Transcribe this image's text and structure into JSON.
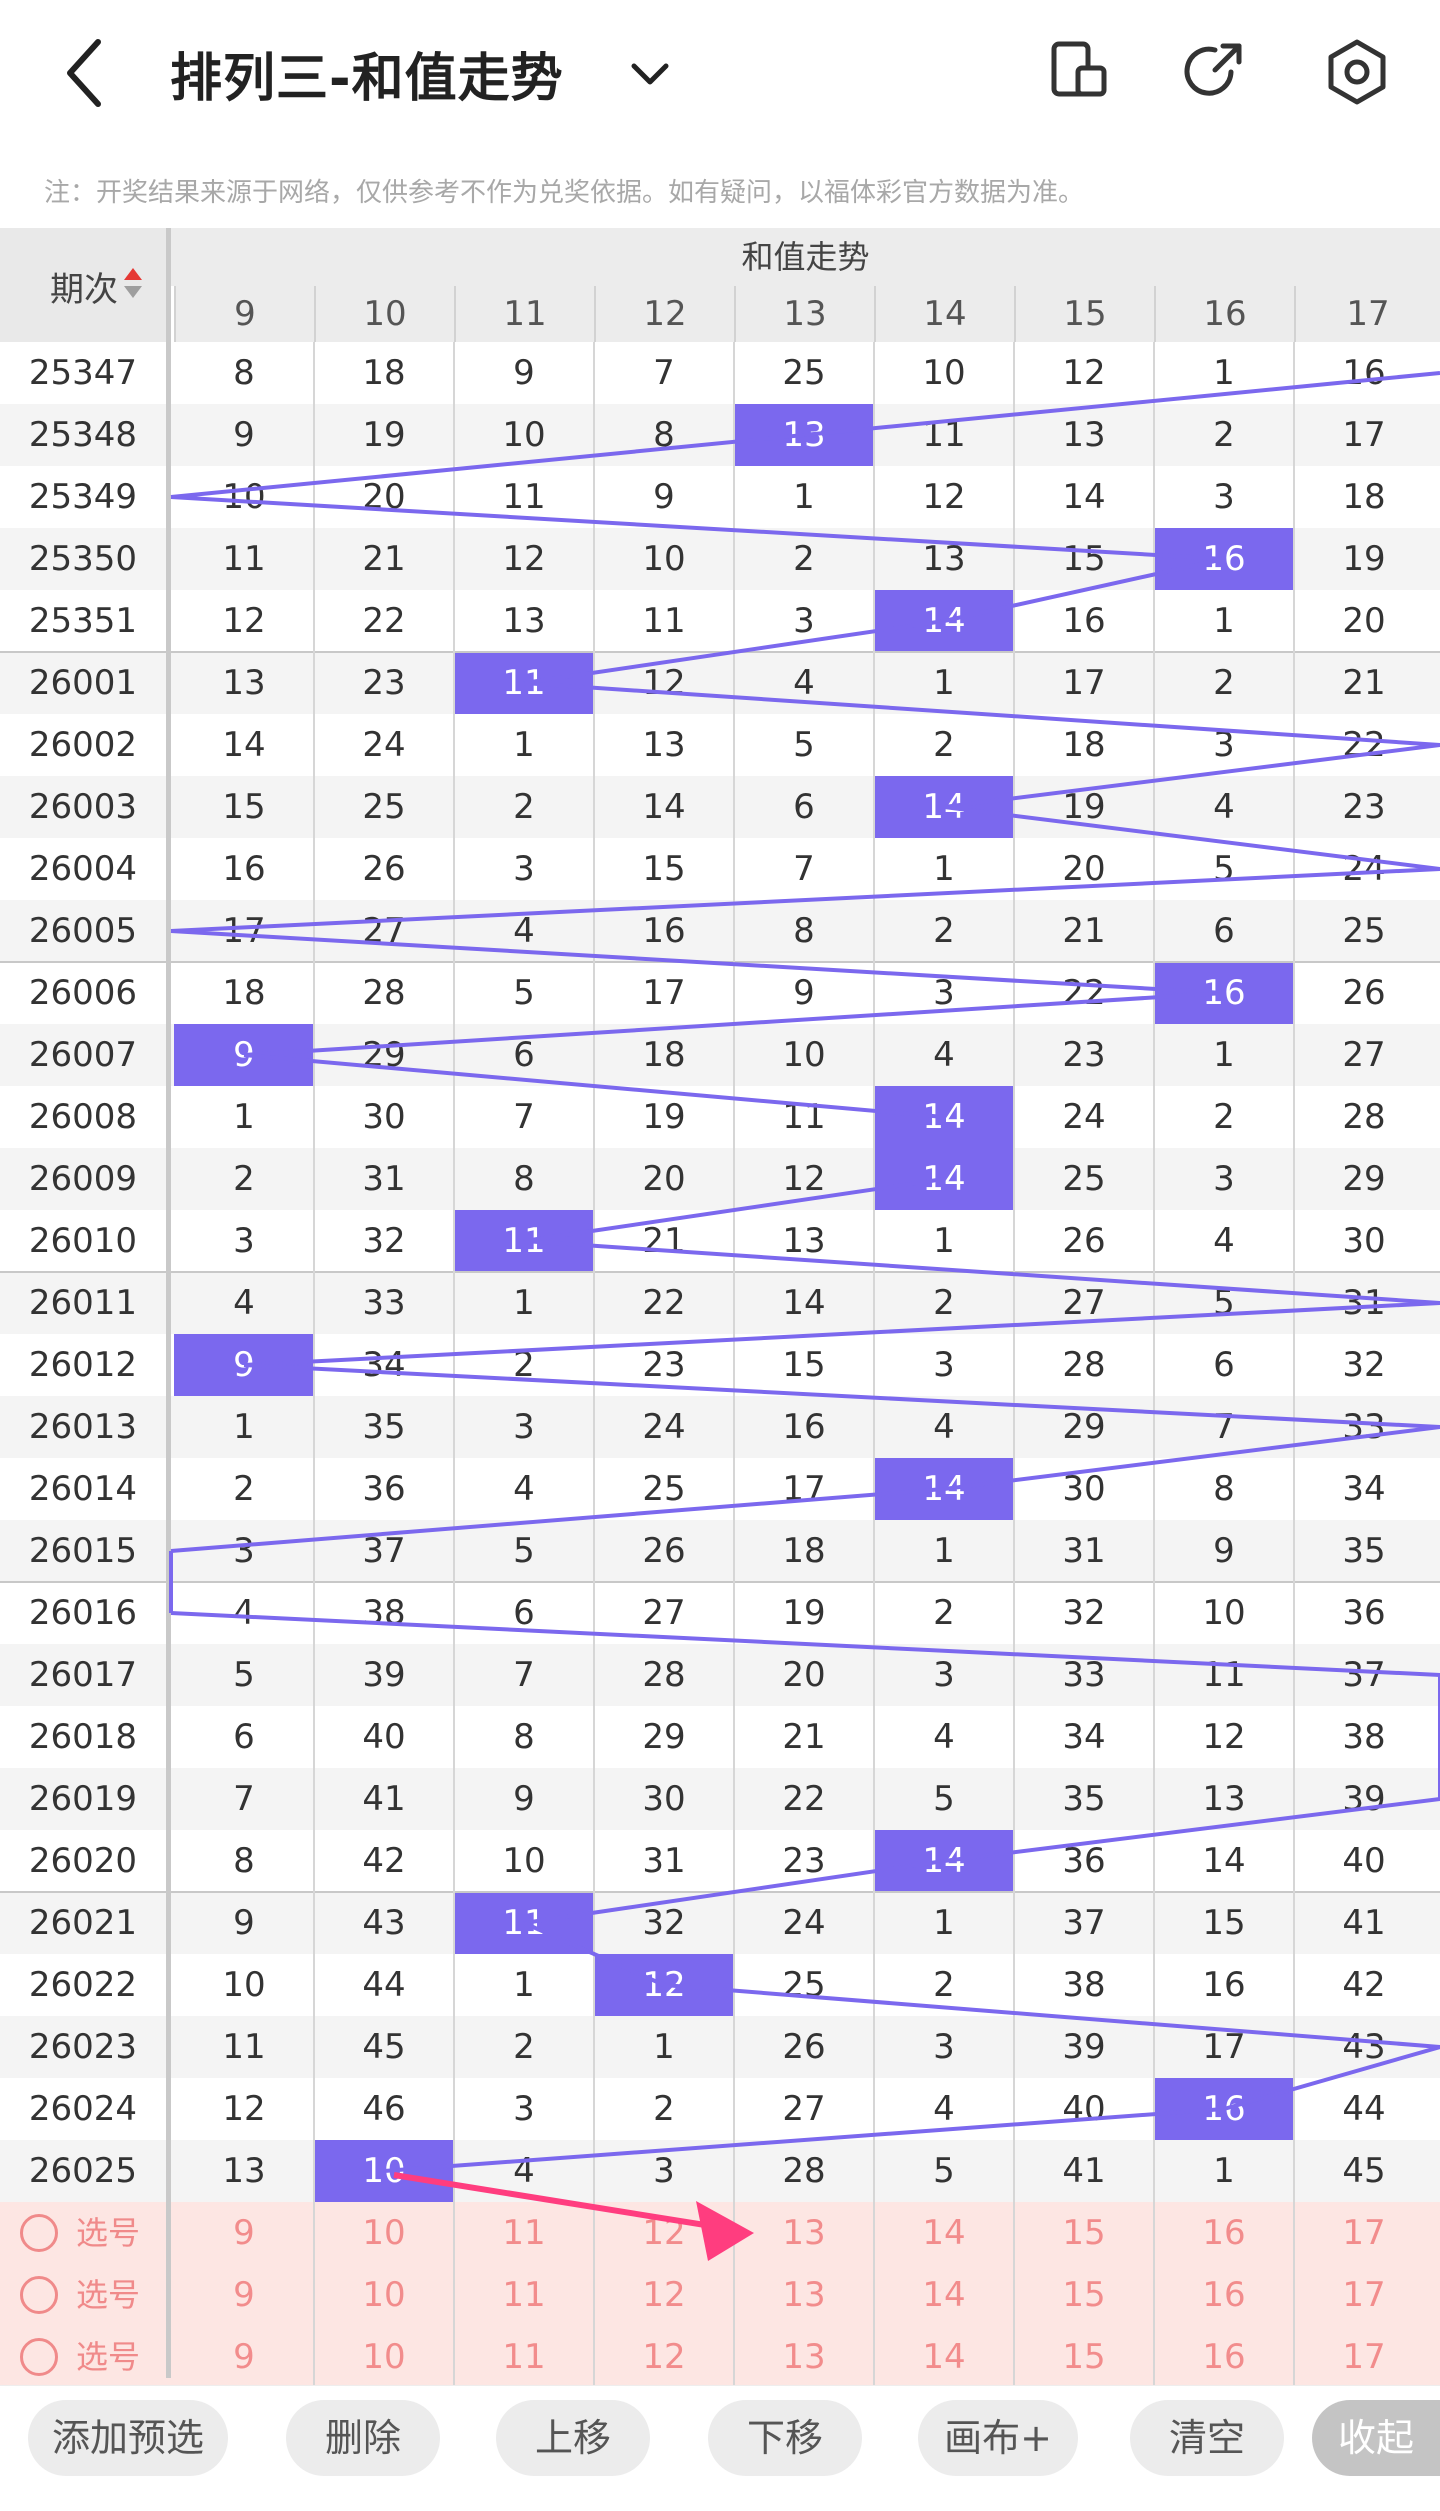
{
  "header": {
    "title": "排列三-和值走势",
    "note": "注：开奖结果来源于网络，仅供参考不作为兑奖依据。如有疑问，以福体彩官方数据为准。",
    "icons": [
      "back-arrow-icon",
      "chevron-down-icon",
      "phone-screen-icon",
      "share-icon",
      "settings-icon"
    ]
  },
  "grid": {
    "period_header": "期次",
    "group_title": "和值走势",
    "columns": [
      "9",
      "10",
      "11",
      "12",
      "13",
      "14",
      "15",
      "16",
      "17"
    ],
    "hit_color": "#7b68ee",
    "line_color": "#7b68ee",
    "rows": [
      {
        "period": "25347",
        "cells": [
          "8",
          "18",
          "9",
          "7",
          "25",
          "10",
          "12",
          "1",
          "16"
        ],
        "hit": -1
      },
      {
        "period": "25348",
        "cells": [
          "9",
          "19",
          "10",
          "8",
          "13",
          "11",
          "13",
          "2",
          "17"
        ],
        "hit": 4
      },
      {
        "period": "25349",
        "cells": [
          "10",
          "20",
          "11",
          "9",
          "1",
          "12",
          "14",
          "3",
          "18"
        ],
        "hit": -1
      },
      {
        "period": "25350",
        "cells": [
          "11",
          "21",
          "12",
          "10",
          "2",
          "13",
          "15",
          "16",
          "19"
        ],
        "hit": 7
      },
      {
        "period": "25351",
        "cells": [
          "12",
          "22",
          "13",
          "11",
          "3",
          "14",
          "16",
          "1",
          "20"
        ],
        "hit": 5
      },
      {
        "period": "26001",
        "cells": [
          "13",
          "23",
          "11",
          "12",
          "4",
          "1",
          "17",
          "2",
          "21"
        ],
        "hit": 2
      },
      {
        "period": "26002",
        "cells": [
          "14",
          "24",
          "1",
          "13",
          "5",
          "2",
          "18",
          "3",
          "22"
        ],
        "hit": -1
      },
      {
        "period": "26003",
        "cells": [
          "15",
          "25",
          "2",
          "14",
          "6",
          "14",
          "19",
          "4",
          "23"
        ],
        "hit": 5
      },
      {
        "period": "26004",
        "cells": [
          "16",
          "26",
          "3",
          "15",
          "7",
          "1",
          "20",
          "5",
          "24"
        ],
        "hit": -1
      },
      {
        "period": "26005",
        "cells": [
          "17",
          "27",
          "4",
          "16",
          "8",
          "2",
          "21",
          "6",
          "25"
        ],
        "hit": -1
      },
      {
        "period": "26006",
        "cells": [
          "18",
          "28",
          "5",
          "17",
          "9",
          "3",
          "22",
          "16",
          "26"
        ],
        "hit": 7
      },
      {
        "period": "26007",
        "cells": [
          "9",
          "29",
          "6",
          "18",
          "10",
          "4",
          "23",
          "1",
          "27"
        ],
        "hit": 0
      },
      {
        "period": "26008",
        "cells": [
          "1",
          "30",
          "7",
          "19",
          "11",
          "14",
          "24",
          "2",
          "28"
        ],
        "hit": 5
      },
      {
        "period": "26009",
        "cells": [
          "2",
          "31",
          "8",
          "20",
          "12",
          "14",
          "25",
          "3",
          "29"
        ],
        "hit": 5
      },
      {
        "period": "26010",
        "cells": [
          "3",
          "32",
          "11",
          "21",
          "13",
          "1",
          "26",
          "4",
          "30"
        ],
        "hit": 2
      },
      {
        "period": "26011",
        "cells": [
          "4",
          "33",
          "1",
          "22",
          "14",
          "2",
          "27",
          "5",
          "31"
        ],
        "hit": -1
      },
      {
        "period": "26012",
        "cells": [
          "9",
          "34",
          "2",
          "23",
          "15",
          "3",
          "28",
          "6",
          "32"
        ],
        "hit": 0
      },
      {
        "period": "26013",
        "cells": [
          "1",
          "35",
          "3",
          "24",
          "16",
          "4",
          "29",
          "7",
          "33"
        ],
        "hit": -1
      },
      {
        "period": "26014",
        "cells": [
          "2",
          "36",
          "4",
          "25",
          "17",
          "14",
          "30",
          "8",
          "34"
        ],
        "hit": 5
      },
      {
        "period": "26015",
        "cells": [
          "3",
          "37",
          "5",
          "26",
          "18",
          "1",
          "31",
          "9",
          "35"
        ],
        "hit": -1
      },
      {
        "period": "26016",
        "cells": [
          "4",
          "38",
          "6",
          "27",
          "19",
          "2",
          "32",
          "10",
          "36"
        ],
        "hit": -1
      },
      {
        "period": "26017",
        "cells": [
          "5",
          "39",
          "7",
          "28",
          "20",
          "3",
          "33",
          "11",
          "37"
        ],
        "hit": -1
      },
      {
        "period": "26018",
        "cells": [
          "6",
          "40",
          "8",
          "29",
          "21",
          "4",
          "34",
          "12",
          "38"
        ],
        "hit": -1
      },
      {
        "period": "26019",
        "cells": [
          "7",
          "41",
          "9",
          "30",
          "22",
          "5",
          "35",
          "13",
          "39"
        ],
        "hit": -1
      },
      {
        "period": "26020",
        "cells": [
          "8",
          "42",
          "10",
          "31",
          "23",
          "14",
          "36",
          "14",
          "40"
        ],
        "hit": 5
      },
      {
        "period": "26021",
        "cells": [
          "9",
          "43",
          "11",
          "32",
          "24",
          "1",
          "37",
          "15",
          "41"
        ],
        "hit": 2
      },
      {
        "period": "26022",
        "cells": [
          "10",
          "44",
          "1",
          "12",
          "25",
          "2",
          "38",
          "16",
          "42"
        ],
        "hit": 3
      },
      {
        "period": "26023",
        "cells": [
          "11",
          "45",
          "2",
          "1",
          "26",
          "3",
          "39",
          "17",
          "43"
        ],
        "hit": -1
      },
      {
        "period": "26024",
        "cells": [
          "12",
          "46",
          "3",
          "2",
          "27",
          "4",
          "40",
          "16",
          "44"
        ],
        "hit": 7
      },
      {
        "period": "26025",
        "cells": [
          "13",
          "10",
          "4",
          "3",
          "28",
          "5",
          "41",
          "1",
          "45"
        ],
        "hit": 1
      }
    ],
    "select_label": "选号",
    "select_rows": [
      [
        "9",
        "10",
        "11",
        "12",
        "13",
        "14",
        "15",
        "16",
        "17"
      ],
      [
        "9",
        "10",
        "11",
        "12",
        "13",
        "14",
        "15",
        "16",
        "17"
      ],
      [
        "9",
        "10",
        "11",
        "12",
        "13",
        "14",
        "15",
        "16",
        "17"
      ]
    ]
  },
  "toolbar": {
    "buttons": [
      "添加预选",
      "删除",
      "上移",
      "下移",
      "画布+",
      "清空",
      "收起"
    ]
  },
  "annotation_arrow_color": "#ff3d7f"
}
